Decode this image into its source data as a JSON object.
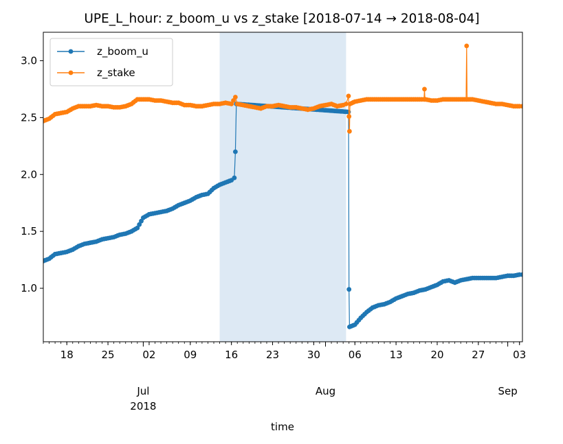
{
  "chart_data": {
    "type": "line",
    "title": "UPE_L_hour: z_boom_u vs z_stake  [2018-07-14 → 2018-08-04]",
    "xlabel": "time",
    "ylabel": "",
    "xlim": [
      "2018-06-14",
      "2018-09-03T12:00"
    ],
    "ylim": [
      0.53,
      3.25
    ],
    "grid": false,
    "legend_position": "top-left",
    "highlight_span": {
      "start": "2018-07-14",
      "end": "2018-08-04T12:00",
      "color": "#dde9f4"
    },
    "y_ticks": [
      "1.0",
      "1.5",
      "2.0",
      "2.5",
      "3.0"
    ],
    "x_ticks": [
      {
        "date": "2018-06-18",
        "label": "18"
      },
      {
        "date": "2018-06-25",
        "label": "25"
      },
      {
        "date": "2018-07-02",
        "label": "02"
      },
      {
        "date": "2018-07-09",
        "label": "09"
      },
      {
        "date": "2018-07-16",
        "label": "16"
      },
      {
        "date": "2018-07-23",
        "label": "23"
      },
      {
        "date": "2018-07-30",
        "label": "30"
      },
      {
        "date": "2018-08-06",
        "label": "06"
      },
      {
        "date": "2018-08-13",
        "label": "13"
      },
      {
        "date": "2018-08-20",
        "label": "20"
      },
      {
        "date": "2018-08-27",
        "label": "27"
      },
      {
        "date": "2018-09-03",
        "label": "03"
      }
    ],
    "month_labels": [
      {
        "date": "2018-07-01",
        "label": "Jul",
        "year": "2018"
      },
      {
        "date": "2018-08-01",
        "label": "Aug",
        "year": ""
      },
      {
        "date": "2018-09-01",
        "label": "Sep",
        "year": ""
      }
    ],
    "series": [
      {
        "name": "z_boom_u",
        "color": "#1f77b4",
        "points": [
          [
            "2018-06-14",
            1.24
          ],
          [
            "2018-06-15",
            1.26
          ],
          [
            "2018-06-16",
            1.3
          ],
          [
            "2018-06-17",
            1.31
          ],
          [
            "2018-06-18",
            1.32
          ],
          [
            "2018-06-19",
            1.34
          ],
          [
            "2018-06-20",
            1.37
          ],
          [
            "2018-06-21",
            1.39
          ],
          [
            "2018-06-22",
            1.4
          ],
          [
            "2018-06-23",
            1.41
          ],
          [
            "2018-06-24",
            1.43
          ],
          [
            "2018-06-25",
            1.44
          ],
          [
            "2018-06-26",
            1.45
          ],
          [
            "2018-06-27",
            1.47
          ],
          [
            "2018-06-28",
            1.48
          ],
          [
            "2018-06-29",
            1.5
          ],
          [
            "2018-06-30",
            1.53
          ],
          [
            "2018-07-01",
            1.62
          ],
          [
            "2018-07-02",
            1.65
          ],
          [
            "2018-07-03",
            1.66
          ],
          [
            "2018-07-04",
            1.67
          ],
          [
            "2018-07-05",
            1.68
          ],
          [
            "2018-07-06",
            1.7
          ],
          [
            "2018-07-07",
            1.73
          ],
          [
            "2018-07-08",
            1.75
          ],
          [
            "2018-07-09",
            1.77
          ],
          [
            "2018-07-10",
            1.8
          ],
          [
            "2018-07-11",
            1.82
          ],
          [
            "2018-07-12",
            1.83
          ],
          [
            "2018-07-13",
            1.88
          ],
          [
            "2018-07-14",
            1.91
          ],
          [
            "2018-07-15",
            1.93
          ],
          [
            "2018-07-16",
            1.95
          ],
          [
            "2018-07-16T12:00",
            1.97
          ],
          [
            "2018-07-16T16:00",
            2.2
          ],
          [
            "2018-07-16T20:00",
            2.62
          ],
          [
            "2018-08-04T22:00",
            2.55
          ],
          [
            "2018-08-05T00:00",
            0.99
          ],
          [
            "2018-08-05T02:00",
            0.66
          ],
          [
            "2018-08-06",
            0.68
          ],
          [
            "2018-08-07",
            0.74
          ],
          [
            "2018-08-08",
            0.79
          ],
          [
            "2018-08-09",
            0.83
          ],
          [
            "2018-08-10",
            0.85
          ],
          [
            "2018-08-11",
            0.86
          ],
          [
            "2018-08-12",
            0.88
          ],
          [
            "2018-08-13",
            0.91
          ],
          [
            "2018-08-14",
            0.93
          ],
          [
            "2018-08-15",
            0.95
          ],
          [
            "2018-08-16",
            0.96
          ],
          [
            "2018-08-17",
            0.98
          ],
          [
            "2018-08-18",
            0.99
          ],
          [
            "2018-08-19",
            1.01
          ],
          [
            "2018-08-20",
            1.03
          ],
          [
            "2018-08-21",
            1.06
          ],
          [
            "2018-08-22",
            1.07
          ],
          [
            "2018-08-23",
            1.05
          ],
          [
            "2018-08-24",
            1.07
          ],
          [
            "2018-08-25",
            1.08
          ],
          [
            "2018-08-26",
            1.09
          ],
          [
            "2018-08-27",
            1.09
          ],
          [
            "2018-08-28",
            1.09
          ],
          [
            "2018-08-29",
            1.09
          ],
          [
            "2018-08-30",
            1.09
          ],
          [
            "2018-08-31",
            1.1
          ],
          [
            "2018-09-01",
            1.11
          ],
          [
            "2018-09-02",
            1.11
          ],
          [
            "2018-09-03",
            1.12
          ],
          [
            "2018-09-03T12:00",
            1.12
          ]
        ]
      },
      {
        "name": "z_stake",
        "color": "#ff7f0e",
        "points": [
          [
            "2018-06-14",
            2.47
          ],
          [
            "2018-06-15",
            2.49
          ],
          [
            "2018-06-16",
            2.53
          ],
          [
            "2018-06-17",
            2.54
          ],
          [
            "2018-06-18",
            2.55
          ],
          [
            "2018-06-19",
            2.58
          ],
          [
            "2018-06-20",
            2.6
          ],
          [
            "2018-06-21",
            2.6
          ],
          [
            "2018-06-22",
            2.6
          ],
          [
            "2018-06-23",
            2.61
          ],
          [
            "2018-06-24",
            2.6
          ],
          [
            "2018-06-25",
            2.6
          ],
          [
            "2018-06-26",
            2.59
          ],
          [
            "2018-06-27",
            2.59
          ],
          [
            "2018-06-28",
            2.6
          ],
          [
            "2018-06-29",
            2.62
          ],
          [
            "2018-06-30",
            2.66
          ],
          [
            "2018-07-01",
            2.66
          ],
          [
            "2018-07-02",
            2.66
          ],
          [
            "2018-07-03",
            2.65
          ],
          [
            "2018-07-04",
            2.65
          ],
          [
            "2018-07-05",
            2.64
          ],
          [
            "2018-07-06",
            2.63
          ],
          [
            "2018-07-07",
            2.63
          ],
          [
            "2018-07-08",
            2.61
          ],
          [
            "2018-07-09",
            2.61
          ],
          [
            "2018-07-10",
            2.6
          ],
          [
            "2018-07-11",
            2.6
          ],
          [
            "2018-07-12",
            2.61
          ],
          [
            "2018-07-13",
            2.62
          ],
          [
            "2018-07-14",
            2.62
          ],
          [
            "2018-07-15",
            2.63
          ],
          [
            "2018-07-16",
            2.62
          ],
          [
            "2018-07-16T16:00",
            2.68
          ],
          [
            "2018-07-17",
            2.62
          ],
          [
            "2018-07-18",
            2.61
          ],
          [
            "2018-07-19",
            2.6
          ],
          [
            "2018-07-20",
            2.59
          ],
          [
            "2018-07-21",
            2.58
          ],
          [
            "2018-07-22",
            2.6
          ],
          [
            "2018-07-23",
            2.6
          ],
          [
            "2018-07-24",
            2.61
          ],
          [
            "2018-07-25",
            2.6
          ],
          [
            "2018-07-26",
            2.59
          ],
          [
            "2018-07-27",
            2.59
          ],
          [
            "2018-07-28",
            2.58
          ],
          [
            "2018-07-29",
            2.57
          ],
          [
            "2018-07-30",
            2.58
          ],
          [
            "2018-07-31",
            2.6
          ],
          [
            "2018-08-01",
            2.61
          ],
          [
            "2018-08-02",
            2.62
          ],
          [
            "2018-08-03",
            2.6
          ],
          [
            "2018-08-04",
            2.61
          ],
          [
            "2018-08-04T12:00",
            2.62
          ],
          [
            "2018-08-04T22:00",
            2.69
          ],
          [
            "2018-08-05T00:00",
            2.51
          ],
          [
            "2018-08-05T02:00",
            2.38
          ],
          [
            "2018-08-05T04:00",
            2.62
          ],
          [
            "2018-08-06",
            2.64
          ],
          [
            "2018-08-07",
            2.65
          ],
          [
            "2018-08-08",
            2.66
          ],
          [
            "2018-08-09",
            2.66
          ],
          [
            "2018-08-10",
            2.66
          ],
          [
            "2018-08-11",
            2.66
          ],
          [
            "2018-08-12",
            2.66
          ],
          [
            "2018-08-13",
            2.66
          ],
          [
            "2018-08-14",
            2.66
          ],
          [
            "2018-08-15",
            2.66
          ],
          [
            "2018-08-16",
            2.66
          ],
          [
            "2018-08-17",
            2.66
          ],
          [
            "2018-08-17T18:00",
            2.66
          ],
          [
            "2018-08-17T20:00",
            2.75
          ],
          [
            "2018-08-17T22:00",
            2.66
          ],
          [
            "2018-08-18",
            2.66
          ],
          [
            "2018-08-19",
            2.65
          ],
          [
            "2018-08-20",
            2.65
          ],
          [
            "2018-08-21",
            2.66
          ],
          [
            "2018-08-22",
            2.66
          ],
          [
            "2018-08-23",
            2.66
          ],
          [
            "2018-08-24",
            2.66
          ],
          [
            "2018-08-24T22:00",
            2.66
          ],
          [
            "2018-08-25T00:00",
            3.13
          ],
          [
            "2018-08-25T02:00",
            2.66
          ],
          [
            "2018-08-26",
            2.66
          ],
          [
            "2018-08-27",
            2.65
          ],
          [
            "2018-08-28",
            2.64
          ],
          [
            "2018-08-29",
            2.63
          ],
          [
            "2018-08-30",
            2.62
          ],
          [
            "2018-08-31",
            2.62
          ],
          [
            "2018-09-01",
            2.61
          ],
          [
            "2018-09-02",
            2.6
          ],
          [
            "2018-09-03",
            2.6
          ],
          [
            "2018-09-03T12:00",
            2.6
          ]
        ]
      }
    ]
  }
}
